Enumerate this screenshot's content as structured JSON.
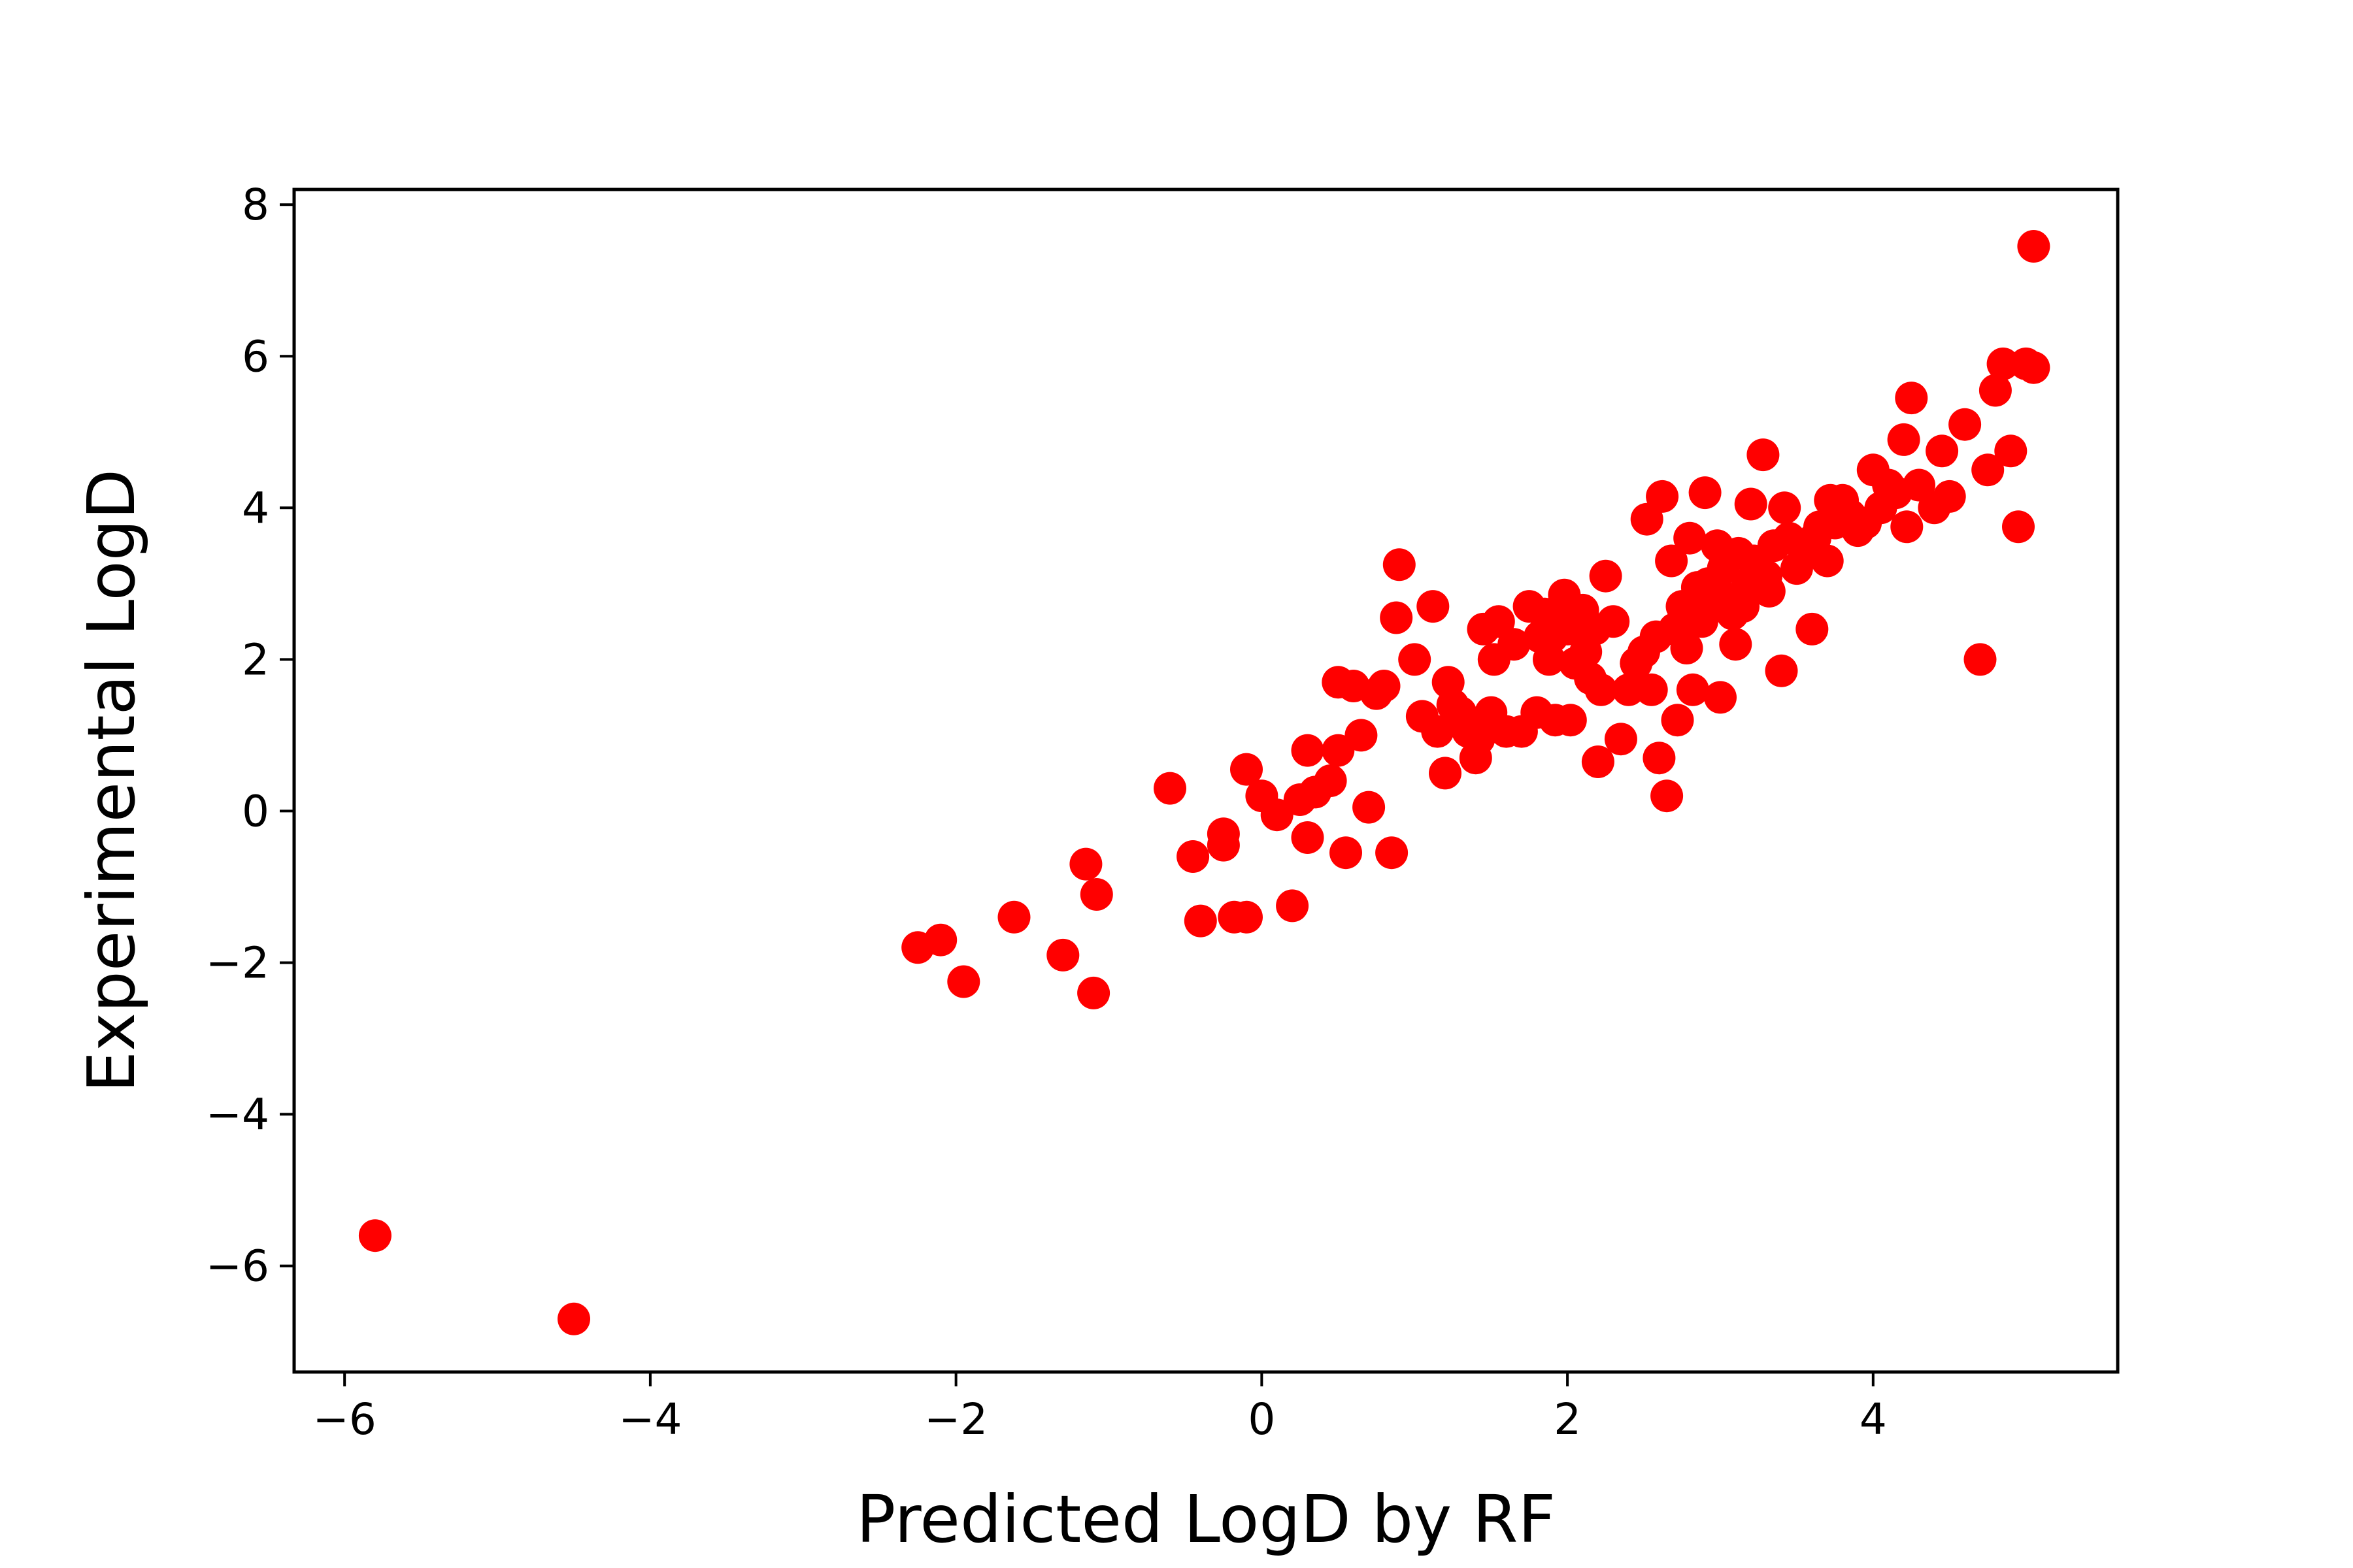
{
  "chart_data": {
    "type": "scatter",
    "title": "",
    "xlabel": "Predicted LogD by RF",
    "ylabel": "Experimental LogD",
    "xlim": [
      -6.33,
      5.6
    ],
    "ylim": [
      -7.4,
      8.2
    ],
    "xticks": [
      -6,
      -4,
      -2,
      0,
      2,
      4
    ],
    "yticks": [
      -6,
      -4,
      -2,
      0,
      2,
      4,
      6,
      8
    ],
    "xtick_labels": [
      "−6",
      "−4",
      "−2",
      "0",
      "2",
      "4"
    ],
    "ytick_labels": [
      "−6",
      "−4",
      "−2",
      "0",
      "2",
      "4",
      "6",
      "8"
    ],
    "grid": false,
    "legend": "none",
    "marker_color": "#ff0000",
    "series": [
      {
        "x": [
          -5.8,
          -4.5,
          -2.25,
          -2.1,
          -1.95,
          -1.62,
          -1.3,
          -1.15,
          -1.08,
          -1.1,
          -0.6,
          -0.45,
          -0.4,
          -0.25,
          -0.25,
          -0.18,
          -0.1,
          -0.1,
          0.0,
          0.1,
          0.2,
          0.25,
          0.3,
          0.3,
          0.35,
          0.45,
          0.5,
          0.5,
          0.55,
          0.6,
          0.65,
          0.7,
          0.75,
          0.8,
          0.85,
          0.88,
          0.9,
          1.0,
          1.05,
          1.12,
          1.15,
          1.2,
          1.22,
          1.25,
          1.3,
          1.35,
          1.4,
          1.42,
          1.45,
          1.5,
          1.52,
          1.55,
          1.6,
          1.65,
          1.7,
          1.75,
          1.8,
          1.82,
          1.85,
          1.88,
          1.9,
          1.92,
          1.95,
          1.98,
          2.0,
          2.02,
          2.05,
          2.08,
          2.1,
          2.12,
          2.15,
          2.18,
          2.2,
          2.22,
          2.25,
          2.3,
          2.35,
          2.4,
          2.45,
          2.5,
          2.52,
          2.55,
          2.58,
          2.6,
          2.62,
          2.65,
          2.68,
          2.7,
          2.72,
          2.75,
          2.78,
          2.8,
          2.82,
          2.85,
          2.88,
          2.9,
          2.92,
          2.95,
          2.98,
          3.0,
          3.02,
          3.05,
          3.08,
          3.1,
          3.12,
          3.15,
          3.18,
          3.2,
          3.22,
          3.25,
          3.28,
          3.3,
          3.32,
          3.35,
          3.4,
          3.42,
          3.45,
          3.5,
          3.55,
          3.6,
          3.62,
          3.65,
          3.7,
          3.72,
          3.75,
          3.8,
          3.85,
          3.9,
          3.95,
          4.0,
          4.05,
          4.1,
          4.15,
          4.2,
          4.22,
          4.25,
          4.3,
          4.4,
          4.45,
          4.5,
          4.6,
          4.7,
          4.75,
          4.8,
          4.85,
          4.9,
          4.95,
          5.0,
          5.05,
          5.05
        ],
        "y": [
          -5.6,
          -6.7,
          -1.8,
          -1.7,
          -2.25,
          -1.4,
          -1.9,
          -0.7,
          -1.1,
          -2.4,
          0.3,
          -0.6,
          -1.45,
          -0.3,
          -0.45,
          -1.4,
          0.55,
          -1.4,
          0.2,
          -0.05,
          -1.25,
          0.15,
          -0.35,
          0.8,
          0.25,
          0.4,
          1.7,
          0.8,
          -0.55,
          1.65,
          1.0,
          0.05,
          1.55,
          1.65,
          -0.55,
          2.55,
          3.25,
          2.0,
          1.25,
          2.7,
          1.05,
          0.5,
          1.7,
          1.4,
          1.3,
          1.05,
          0.7,
          0.95,
          2.4,
          1.3,
          2.0,
          2.5,
          1.05,
          2.2,
          1.05,
          2.7,
          1.3,
          2.3,
          2.6,
          2.0,
          2.3,
          1.2,
          2.5,
          2.85,
          2.4,
          1.2,
          1.95,
          2.5,
          2.65,
          2.1,
          1.75,
          2.4,
          0.65,
          1.6,
          3.1,
          2.5,
          0.95,
          1.6,
          1.95,
          2.1,
          3.85,
          1.6,
          2.3,
          0.7,
          4.15,
          0.2,
          3.3,
          2.4,
          1.2,
          2.7,
          2.15,
          3.6,
          1.6,
          2.95,
          2.5,
          4.2,
          3.0,
          2.7,
          3.5,
          1.5,
          3.2,
          2.8,
          2.6,
          2.2,
          3.4,
          2.7,
          3.0,
          4.05,
          3.3,
          3.0,
          4.7,
          3.1,
          2.9,
          3.5,
          1.85,
          4.0,
          3.6,
          3.2,
          3.4,
          2.4,
          3.6,
          3.75,
          3.3,
          4.1,
          3.8,
          4.1,
          3.9,
          3.7,
          3.8,
          4.5,
          4.0,
          4.3,
          4.2,
          4.9,
          3.75,
          5.45,
          4.3,
          4.0,
          4.75,
          4.15,
          5.1,
          2.0,
          4.5,
          5.55,
          5.9,
          4.75,
          3.75,
          5.9,
          5.85,
          7.45
        ]
      }
    ]
  }
}
